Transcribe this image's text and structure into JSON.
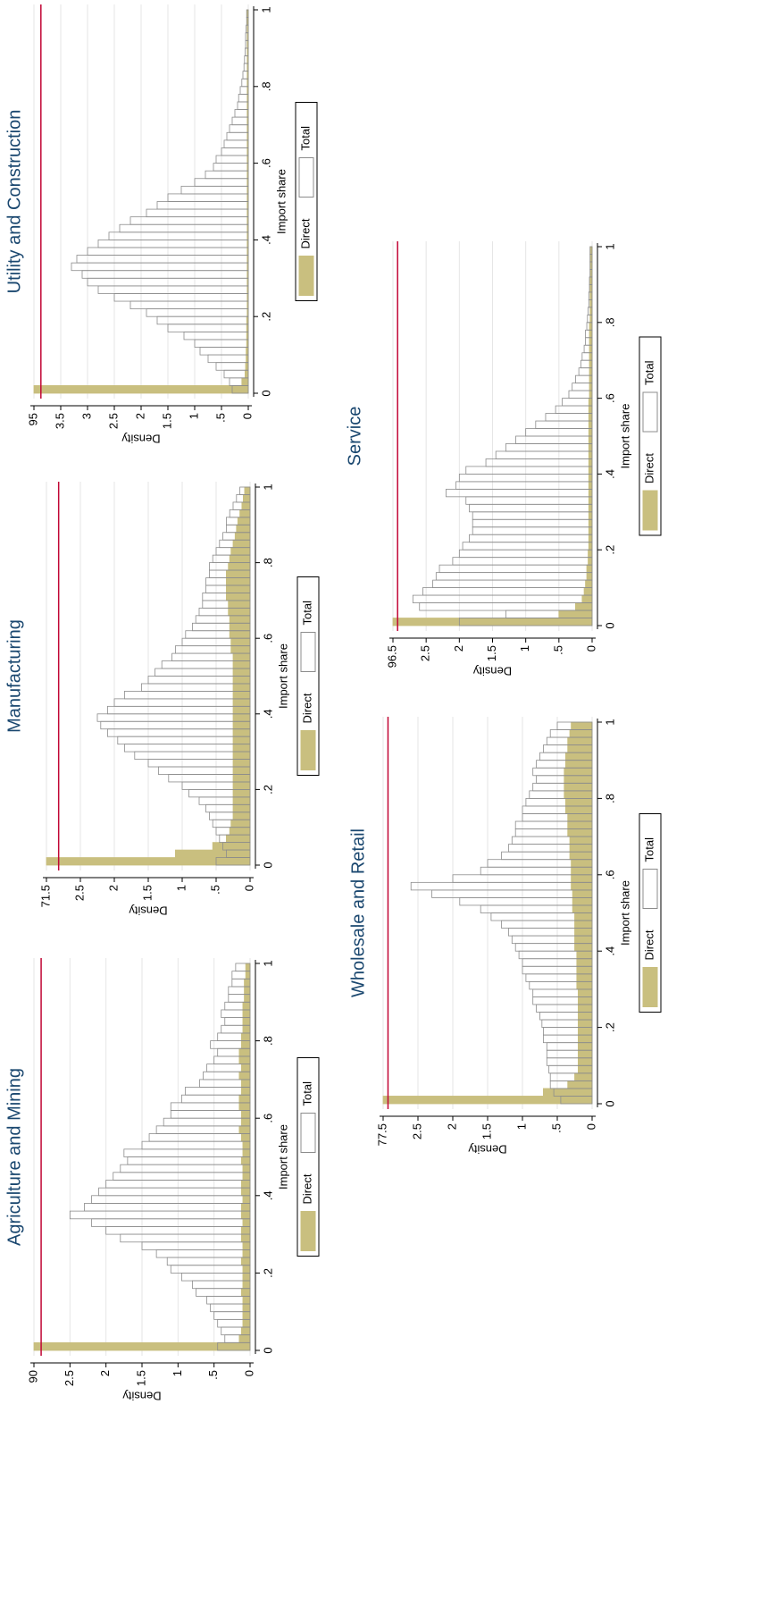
{
  "chart_data": [
    {
      "type": "histogram",
      "title": "Agriculture and Mining",
      "xlabel": "Import share",
      "ylabel": "Density",
      "bins": [
        0,
        0.02,
        0.04,
        0.06,
        0.08,
        0.1,
        0.12,
        0.14,
        0.16,
        0.18,
        0.2,
        0.22,
        0.24,
        0.26,
        0.28,
        0.3,
        0.32,
        0.34,
        0.36,
        0.38,
        0.4,
        0.42,
        0.44,
        0.46,
        0.48,
        0.5,
        0.52,
        0.54,
        0.56,
        0.58,
        0.6,
        0.62,
        0.64,
        0.66,
        0.68,
        0.7,
        0.72,
        0.74,
        0.76,
        0.78,
        0.8,
        0.82,
        0.84,
        0.86,
        0.88,
        0.9,
        0.92,
        0.94,
        0.96,
        0.98,
        1
      ],
      "series": [
        {
          "name": "Direct",
          "color": "#c9bf7f",
          "edgecolor": "#c9bf7f",
          "values": [
            90,
            0.15,
            0.12,
            0.1,
            0.1,
            0.1,
            0.1,
            0.12,
            0.1,
            0.1,
            0.1,
            0.12,
            0.1,
            0.1,
            0.12,
            0.12,
            0.1,
            0.12,
            0.12,
            0.1,
            0.12,
            0.12,
            0.1,
            0.1,
            0.12,
            0.1,
            0.1,
            0.12,
            0.15,
            0.12,
            0.12,
            0.15,
            0.15,
            0.12,
            0.12,
            0.15,
            0.12,
            0.15,
            0.15,
            0.12,
            0.12,
            0.1,
            0.1,
            0.1,
            0.1,
            0.08,
            0.08,
            0.08,
            0.06,
            0.06
          ]
        },
        {
          "name": "Total",
          "color": "#ffffff",
          "edgecolor": "#8c8c8c",
          "values": [
            0.45,
            0.35,
            0.4,
            0.45,
            0.5,
            0.55,
            0.6,
            0.75,
            0.8,
            0.95,
            1.1,
            1.15,
            1.3,
            1.5,
            1.8,
            2.0,
            2.2,
            2.5,
            2.3,
            2.2,
            2.1,
            2.0,
            1.9,
            1.8,
            1.7,
            1.75,
            1.5,
            1.4,
            1.3,
            1.2,
            1.1,
            1.1,
            0.95,
            0.9,
            0.7,
            0.65,
            0.6,
            0.5,
            0.45,
            0.55,
            0.45,
            0.4,
            0.35,
            0.4,
            0.35,
            0.3,
            0.3,
            0.25,
            0.25,
            0.2
          ]
        }
      ],
      "xlim": [
        0,
        1
      ],
      "xticks": [
        0,
        {
          "value": 0.2,
          "label": ".2"
        },
        {
          "value": 0.4,
          "label": ".4"
        },
        {
          "value": 0.6,
          "label": ".6"
        },
        {
          "value": 0.8,
          "label": ".8"
        },
        1
      ],
      "ylim": [
        0,
        90
      ],
      "yticks": [
        0,
        {
          "value": 0.5,
          "label": ".5"
        },
        1,
        1.5,
        2,
        2.5,
        90
      ],
      "axis_break": [
        2.9,
        89.9
      ],
      "break_color": "#c10534",
      "grid": true
    },
    {
      "type": "histogram",
      "title": "Manufacturing",
      "xlabel": "Import share",
      "ylabel": "Density",
      "bins": [
        0,
        0.02,
        0.04,
        0.06,
        0.08,
        0.1,
        0.12,
        0.14,
        0.16,
        0.18,
        0.2,
        0.22,
        0.24,
        0.26,
        0.28,
        0.3,
        0.32,
        0.34,
        0.36,
        0.38,
        0.4,
        0.42,
        0.44,
        0.46,
        0.48,
        0.5,
        0.52,
        0.54,
        0.56,
        0.58,
        0.6,
        0.62,
        0.64,
        0.66,
        0.68,
        0.7,
        0.72,
        0.74,
        0.76,
        0.78,
        0.8,
        0.82,
        0.84,
        0.86,
        0.88,
        0.9,
        0.92,
        0.94,
        0.96,
        0.98,
        1
      ],
      "series": [
        {
          "name": "Direct",
          "color": "#c9bf7f",
          "edgecolor": "#c9bf7f",
          "values": [
            71.5,
            1.1,
            0.55,
            0.35,
            0.3,
            0.28,
            0.25,
            0.25,
            0.25,
            0.25,
            0.25,
            0.25,
            0.25,
            0.25,
            0.25,
            0.25,
            0.25,
            0.25,
            0.25,
            0.25,
            0.25,
            0.25,
            0.25,
            0.25,
            0.25,
            0.25,
            0.25,
            0.25,
            0.28,
            0.28,
            0.3,
            0.3,
            0.3,
            0.32,
            0.32,
            0.35,
            0.35,
            0.35,
            0.35,
            0.32,
            0.3,
            0.28,
            0.25,
            0.22,
            0.2,
            0.18,
            0.15,
            0.12,
            0.1,
            0.08
          ]
        },
        {
          "name": "Total",
          "color": "#ffffff",
          "edgecolor": "#8c8c8c",
          "values": [
            0.5,
            0.35,
            0.4,
            0.45,
            0.5,
            0.55,
            0.6,
            0.65,
            0.75,
            0.9,
            1.0,
            1.2,
            1.35,
            1.5,
            1.7,
            1.85,
            1.95,
            2.1,
            2.2,
            2.25,
            2.1,
            2.0,
            1.85,
            1.6,
            1.5,
            1.4,
            1.3,
            1.15,
            1.1,
            1.0,
            0.95,
            0.85,
            0.8,
            0.75,
            0.7,
            0.7,
            0.65,
            0.65,
            0.6,
            0.6,
            0.55,
            0.5,
            0.45,
            0.4,
            0.35,
            0.35,
            0.3,
            0.25,
            0.2,
            0.15
          ]
        }
      ],
      "xlim": [
        0,
        1
      ],
      "xticks": [
        0,
        {
          "value": 0.2,
          "label": ".2"
        },
        {
          "value": 0.4,
          "label": ".4"
        },
        {
          "value": 0.6,
          "label": ".6"
        },
        {
          "value": 0.8,
          "label": ".8"
        },
        1
      ],
      "ylim": [
        0,
        71.5
      ],
      "yticks": [
        0,
        {
          "value": 0.5,
          "label": ".5"
        },
        1,
        1.5,
        2,
        2.5,
        71.5
      ],
      "axis_break": [
        2.82,
        71.32
      ],
      "break_color": "#c10534",
      "grid": true
    },
    {
      "type": "histogram",
      "title": "Utility and Construction",
      "xlabel": "Import share",
      "ylabel": "Density",
      "bins": [
        0,
        0.02,
        0.04,
        0.06,
        0.08,
        0.1,
        0.12,
        0.14,
        0.16,
        0.18,
        0.2,
        0.22,
        0.24,
        0.26,
        0.28,
        0.3,
        0.32,
        0.34,
        0.36,
        0.38,
        0.4,
        0.42,
        0.44,
        0.46,
        0.48,
        0.5,
        0.52,
        0.54,
        0.56,
        0.58,
        0.6,
        0.62,
        0.64,
        0.66,
        0.68,
        0.7,
        0.72,
        0.74,
        0.76,
        0.78,
        0.8,
        0.82,
        0.84,
        0.86,
        0.88,
        0.9,
        0.92,
        0.94,
        0.96,
        0.98,
        1
      ],
      "series": [
        {
          "name": "Direct",
          "color": "#c9bf7f",
          "edgecolor": "#c9bf7f",
          "values": [
            95,
            0.12,
            0.06,
            0.05,
            0.04,
            0.04,
            0.03,
            0.03,
            0.03,
            0.03,
            0.02,
            0.02,
            0.02,
            0.02,
            0.02,
            0.02,
            0.02,
            0.02,
            0.02,
            0.02,
            0.02,
            0.02,
            0.02,
            0.02,
            0.02,
            0.02,
            0.02,
            0.02,
            0.02,
            0.02,
            0.02,
            0.02,
            0.02,
            0.02,
            0.02,
            0.02,
            0.02,
            0.02,
            0.02,
            0.02,
            0.02,
            0.02,
            0.02,
            0.02,
            0.02,
            0.02,
            0.02,
            0.02,
            0.02,
            0.02
          ]
        },
        {
          "name": "Total",
          "color": "#ffffff",
          "edgecolor": "#8c8c8c",
          "values": [
            0.3,
            0.35,
            0.45,
            0.6,
            0.75,
            0.9,
            1.0,
            1.2,
            1.5,
            1.7,
            1.9,
            2.2,
            2.5,
            2.8,
            3.0,
            3.1,
            3.3,
            3.2,
            3.0,
            2.8,
            2.6,
            2.4,
            2.2,
            1.9,
            1.7,
            1.5,
            1.25,
            1.0,
            0.8,
            0.65,
            0.6,
            0.5,
            0.45,
            0.4,
            0.35,
            0.3,
            0.25,
            0.2,
            0.18,
            0.15,
            0.12,
            0.1,
            0.08,
            0.07,
            0.06,
            0.05,
            0.05,
            0.04,
            0.03,
            0.03
          ]
        }
      ],
      "xlim": [
        0,
        1
      ],
      "xticks": [
        0,
        {
          "value": 0.2,
          "label": ".2"
        },
        {
          "value": 0.4,
          "label": ".4"
        },
        {
          "value": 0.6,
          "label": ".6"
        },
        {
          "value": 0.8,
          "label": ".8"
        },
        1
      ],
      "ylim": [
        0,
        95
      ],
      "yticks": [
        0,
        {
          "value": 0.5,
          "label": ".5"
        },
        1,
        1.5,
        2,
        2.5,
        3,
        3.5,
        95
      ],
      "axis_break": [
        3.87,
        94.87
      ],
      "break_color": "#c10534",
      "grid": true
    },
    {
      "type": "histogram",
      "title": "Wholesale and Retail",
      "xlabel": "Import share",
      "ylabel": "Density",
      "bins": [
        0,
        0.02,
        0.04,
        0.06,
        0.08,
        0.1,
        0.12,
        0.14,
        0.16,
        0.18,
        0.2,
        0.22,
        0.24,
        0.26,
        0.28,
        0.3,
        0.32,
        0.34,
        0.36,
        0.38,
        0.4,
        0.42,
        0.44,
        0.46,
        0.48,
        0.5,
        0.52,
        0.54,
        0.56,
        0.58,
        0.6,
        0.62,
        0.64,
        0.66,
        0.68,
        0.7,
        0.72,
        0.74,
        0.76,
        0.78,
        0.8,
        0.82,
        0.84,
        0.86,
        0.88,
        0.9,
        0.92,
        0.94,
        0.96,
        0.98,
        1
      ],
      "series": [
        {
          "name": "Direct",
          "color": "#c9bf7f",
          "edgecolor": "#c9bf7f",
          "values": [
            77.5,
            0.7,
            0.35,
            0.25,
            0.2,
            0.2,
            0.2,
            0.2,
            0.2,
            0.2,
            0.2,
            0.2,
            0.2,
            0.2,
            0.2,
            0.22,
            0.22,
            0.22,
            0.22,
            0.22,
            0.25,
            0.25,
            0.25,
            0.25,
            0.25,
            0.28,
            0.28,
            0.28,
            0.3,
            0.3,
            0.3,
            0.3,
            0.32,
            0.32,
            0.32,
            0.35,
            0.35,
            0.35,
            0.38,
            0.38,
            0.4,
            0.4,
            0.4,
            0.4,
            0.38,
            0.38,
            0.35,
            0.35,
            0.32,
            0.3
          ]
        },
        {
          "name": "Total",
          "color": "#ffffff",
          "edgecolor": "#8c8c8c",
          "values": [
            0.45,
            0.55,
            0.6,
            0.6,
            0.62,
            0.65,
            0.65,
            0.65,
            0.7,
            0.7,
            0.72,
            0.75,
            0.8,
            0.85,
            0.85,
            0.9,
            0.95,
            1.0,
            1.0,
            1.05,
            1.1,
            1.15,
            1.2,
            1.3,
            1.45,
            1.6,
            1.9,
            2.3,
            2.6,
            2.0,
            1.6,
            1.5,
            1.3,
            1.2,
            1.15,
            1.1,
            1.1,
            1.0,
            1.0,
            0.95,
            0.9,
            0.85,
            0.8,
            0.85,
            0.8,
            0.75,
            0.7,
            0.65,
            0.6,
            0.5
          ]
        }
      ],
      "xlim": [
        0,
        1
      ],
      "xticks": [
        0,
        {
          "value": 0.2,
          "label": ".2"
        },
        {
          "value": 0.4,
          "label": ".4"
        },
        {
          "value": 0.6,
          "label": ".6"
        },
        {
          "value": 0.8,
          "label": ".8"
        },
        1
      ],
      "ylim": [
        0,
        77.5
      ],
      "yticks": [
        0,
        {
          "value": 0.5,
          "label": ".5"
        },
        1,
        1.5,
        2,
        2.5,
        77.5
      ],
      "axis_break": [
        2.93,
        77.43
      ],
      "break_color": "#c10534",
      "grid": true
    },
    {
      "type": "histogram",
      "title": "Service",
      "xlabel": "Import share",
      "ylabel": "Density",
      "bins": [
        0,
        0.02,
        0.04,
        0.06,
        0.08,
        0.1,
        0.12,
        0.14,
        0.16,
        0.18,
        0.2,
        0.22,
        0.24,
        0.26,
        0.28,
        0.3,
        0.32,
        0.34,
        0.36,
        0.38,
        0.4,
        0.42,
        0.44,
        0.46,
        0.48,
        0.5,
        0.52,
        0.54,
        0.56,
        0.58,
        0.6,
        0.62,
        0.64,
        0.66,
        0.68,
        0.7,
        0.72,
        0.74,
        0.76,
        0.78,
        0.8,
        0.82,
        0.84,
        0.86,
        0.88,
        0.9,
        0.92,
        0.94,
        0.96,
        0.98,
        1
      ],
      "series": [
        {
          "name": "Direct",
          "color": "#c9bf7f",
          "edgecolor": "#c9bf7f",
          "values": [
            96.5,
            0.5,
            0.25,
            0.15,
            0.12,
            0.1,
            0.08,
            0.08,
            0.06,
            0.06,
            0.05,
            0.05,
            0.05,
            0.05,
            0.05,
            0.05,
            0.05,
            0.05,
            0.05,
            0.05,
            0.05,
            0.05,
            0.05,
            0.05,
            0.05,
            0.05,
            0.05,
            0.05,
            0.05,
            0.05,
            0.04,
            0.04,
            0.04,
            0.04,
            0.04,
            0.04,
            0.04,
            0.04,
            0.04,
            0.04,
            0.03,
            0.03,
            0.03,
            0.03,
            0.03,
            0.03,
            0.03,
            0.03,
            0.03,
            0.03
          ]
        },
        {
          "name": "Total",
          "color": "#ffffff",
          "edgecolor": "#8c8c8c",
          "values": [
            2.0,
            1.3,
            2.6,
            2.7,
            2.55,
            2.4,
            2.35,
            2.3,
            2.1,
            2.0,
            1.95,
            1.85,
            1.8,
            1.8,
            1.8,
            1.85,
            1.9,
            2.2,
            2.05,
            2.0,
            1.9,
            1.6,
            1.45,
            1.3,
            1.15,
            1.0,
            0.85,
            0.7,
            0.55,
            0.45,
            0.35,
            0.3,
            0.25,
            0.2,
            0.17,
            0.15,
            0.12,
            0.1,
            0.1,
            0.08,
            0.07,
            0.06,
            0.05,
            0.05,
            0.04,
            0.04,
            0.03,
            0.03,
            0.03,
            0.03
          ]
        }
      ],
      "xlim": [
        0,
        1
      ],
      "xticks": [
        0,
        {
          "value": 0.2,
          "label": ".2"
        },
        {
          "value": 0.4,
          "label": ".4"
        },
        {
          "value": 0.6,
          "label": ".6"
        },
        {
          "value": 0.8,
          "label": ".8"
        },
        1
      ],
      "ylim": [
        0,
        96.5
      ],
      "yticks": [
        0,
        {
          "value": 0.5,
          "label": ".5"
        },
        1,
        1.5,
        2,
        2.5,
        96.5
      ],
      "axis_break": [
        2.93,
        96.43
      ],
      "break_color": "#c10534",
      "grid": true
    }
  ]
}
